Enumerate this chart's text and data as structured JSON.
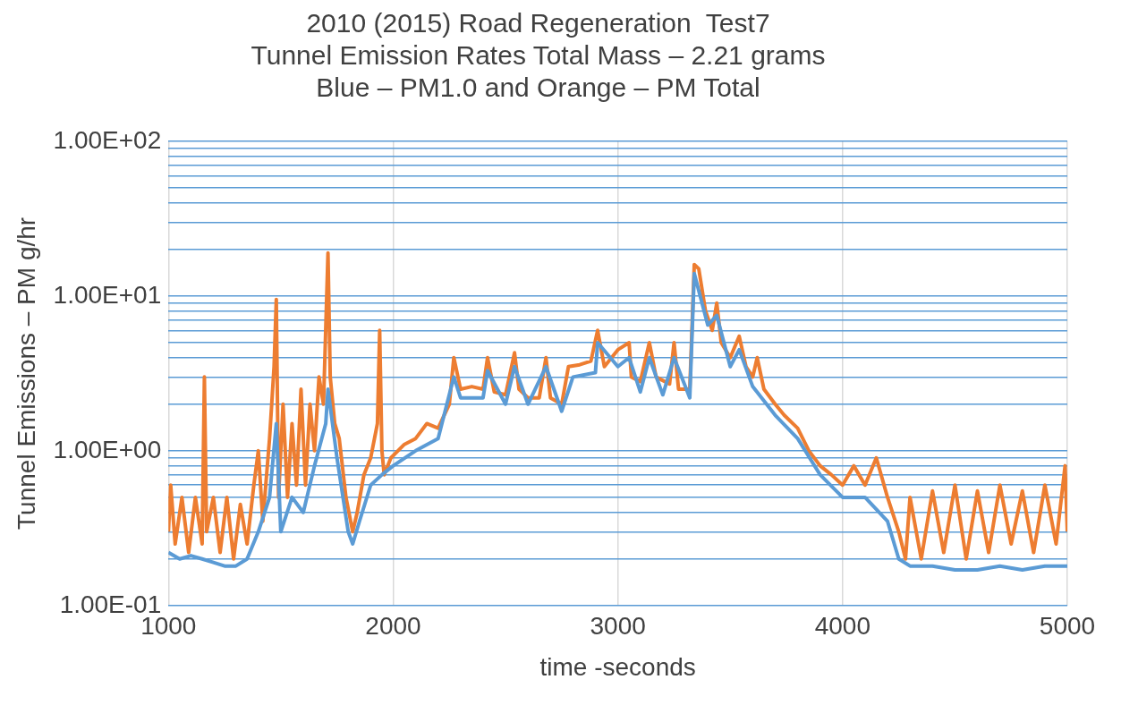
{
  "chart_data": {
    "type": "line",
    "title": "2010 (2015) Road Regeneration  Test7\nTunnel Emission Rates Total Mass – 2.21 grams\nBlue – PM1.0 and Orange – PM Total",
    "xlabel": "time -seconds",
    "ylabel": "Tunnel Emissions – PM g/hr",
    "log": "y",
    "grid": true,
    "legend": false,
    "marker": "none",
    "line_style": "solid",
    "xlim": [
      1000,
      5000
    ],
    "xticks": [
      1000,
      2000,
      3000,
      4000,
      5000
    ],
    "ylim": [
      0.1,
      100
    ],
    "yticks": [
      {
        "value": 0.1,
        "label": "1.00E-01"
      },
      {
        "value": 0.2,
        "label": null
      },
      {
        "value": 0.3,
        "label": null
      },
      {
        "value": 0.4,
        "label": null
      },
      {
        "value": 0.5,
        "label": null
      },
      {
        "value": 0.6,
        "label": null
      },
      {
        "value": 0.7,
        "label": null
      },
      {
        "value": 0.8,
        "label": null
      },
      {
        "value": 0.9,
        "label": null
      },
      {
        "value": 1,
        "label": "1.00E+00"
      },
      {
        "value": 2,
        "label": null
      },
      {
        "value": 3,
        "label": null
      },
      {
        "value": 4,
        "label": null
      },
      {
        "value": 5,
        "label": null
      },
      {
        "value": 6,
        "label": null
      },
      {
        "value": 7,
        "label": null
      },
      {
        "value": 8,
        "label": null
      },
      {
        "value": 9,
        "label": null
      },
      {
        "value": 10,
        "label": "1.00E+01"
      },
      {
        "value": 20,
        "label": null
      },
      {
        "value": 30,
        "label": null
      },
      {
        "value": 40,
        "label": null
      },
      {
        "value": 50,
        "label": null
      },
      {
        "value": 60,
        "label": null
      },
      {
        "value": 70,
        "label": null
      },
      {
        "value": 80,
        "label": null
      },
      {
        "value": 90,
        "label": null
      },
      {
        "value": 100,
        "label": "1.00E+02"
      }
    ],
    "series": [
      {
        "color": "#5b9bd5",
        "x": [
          1000,
          1050,
          1100,
          1150,
          1200,
          1250,
          1300,
          1350,
          1400,
          1450,
          1480,
          1500,
          1550,
          1600,
          1650,
          1700,
          1710,
          1750,
          1800,
          1820,
          1850,
          1900,
          1950,
          2000,
          2100,
          2200,
          2270,
          2300,
          2400,
          2420,
          2500,
          2540,
          2600,
          2680,
          2750,
          2800,
          2900,
          2910,
          3000,
          3050,
          3100,
          3140,
          3200,
          3250,
          3320,
          3340,
          3400,
          3440,
          3500,
          3540,
          3600,
          3700,
          3800,
          3900,
          4000,
          4100,
          4200,
          4250,
          4300,
          4400,
          4500,
          4600,
          4700,
          4800,
          4900,
          5000
        ],
        "values": [
          0.22,
          0.2,
          0.21,
          0.2,
          0.19,
          0.18,
          0.18,
          0.2,
          0.3,
          0.5,
          1.5,
          0.3,
          0.5,
          0.4,
          0.8,
          1.5,
          2.5,
          0.9,
          0.3,
          0.25,
          0.35,
          0.6,
          0.7,
          0.8,
          1.0,
          1.2,
          3.0,
          2.2,
          2.2,
          3.3,
          2.0,
          3.5,
          2.0,
          3.5,
          1.8,
          3.0,
          3.2,
          5.0,
          3.5,
          4.0,
          2.4,
          4.0,
          2.3,
          4.0,
          2.2,
          14,
          6.5,
          7.5,
          3.5,
          4.5,
          2.6,
          1.7,
          1.2,
          0.7,
          0.5,
          0.5,
          0.35,
          0.2,
          0.18,
          0.18,
          0.17,
          0.17,
          0.18,
          0.17,
          0.18,
          0.18
        ]
      },
      {
        "color": "#ed7d31",
        "x": [
          1000,
          1010,
          1030,
          1060,
          1090,
          1120,
          1150,
          1160,
          1170,
          1200,
          1230,
          1260,
          1290,
          1320,
          1350,
          1380,
          1400,
          1420,
          1450,
          1470,
          1480,
          1490,
          1510,
          1530,
          1550,
          1570,
          1590,
          1610,
          1630,
          1650,
          1670,
          1690,
          1710,
          1720,
          1740,
          1760,
          1790,
          1820,
          1840,
          1870,
          1900,
          1930,
          1940,
          1950,
          1960,
          1990,
          2050,
          2100,
          2150,
          2200,
          2250,
          2270,
          2300,
          2350,
          2400,
          2420,
          2450,
          2500,
          2540,
          2560,
          2600,
          2650,
          2680,
          2700,
          2750,
          2780,
          2830,
          2880,
          2910,
          2940,
          3000,
          3050,
          3060,
          3100,
          3140,
          3170,
          3230,
          3250,
          3270,
          3320,
          3340,
          3360,
          3390,
          3420,
          3440,
          3460,
          3500,
          3540,
          3570,
          3600,
          3620,
          3650,
          3700,
          3740,
          3800,
          3850,
          3900,
          3950,
          4000,
          4050,
          4100,
          4150,
          4200,
          4250,
          4280,
          4300,
          4350,
          4400,
          4450,
          4500,
          4550,
          4600,
          4650,
          4700,
          4750,
          4800,
          4850,
          4900,
          4950,
          4990,
          5000
        ],
        "values": [
          0.3,
          0.6,
          0.25,
          0.5,
          0.22,
          0.5,
          0.25,
          3.0,
          0.3,
          0.5,
          0.22,
          0.5,
          0.2,
          0.45,
          0.25,
          0.6,
          1.0,
          0.35,
          1.2,
          3.5,
          9.5,
          0.5,
          2.0,
          0.5,
          1.5,
          0.6,
          2.5,
          0.6,
          2.0,
          1.0,
          3.0,
          2.0,
          19,
          3.0,
          1.5,
          1.2,
          0.5,
          0.3,
          0.4,
          0.7,
          0.9,
          1.5,
          6.0,
          1.0,
          0.7,
          0.9,
          1.1,
          1.2,
          1.5,
          1.4,
          2.0,
          4.0,
          2.5,
          2.6,
          2.5,
          4.0,
          2.4,
          2.3,
          4.3,
          2.5,
          2.2,
          2.2,
          4.0,
          2.2,
          2.0,
          3.5,
          3.6,
          3.8,
          6.0,
          3.5,
          4.5,
          5.0,
          3.0,
          2.8,
          5.0,
          3.0,
          2.7,
          5.0,
          2.5,
          2.5,
          16,
          15,
          8,
          6,
          9,
          5,
          4,
          5.5,
          3.5,
          3.0,
          4.0,
          2.5,
          2.0,
          1.7,
          1.4,
          1.0,
          0.8,
          0.7,
          0.6,
          0.8,
          0.6,
          0.9,
          0.5,
          0.3,
          0.2,
          0.5,
          0.2,
          0.55,
          0.22,
          0.6,
          0.2,
          0.55,
          0.22,
          0.6,
          0.25,
          0.55,
          0.22,
          0.6,
          0.25,
          0.8,
          0.3
        ]
      }
    ]
  }
}
